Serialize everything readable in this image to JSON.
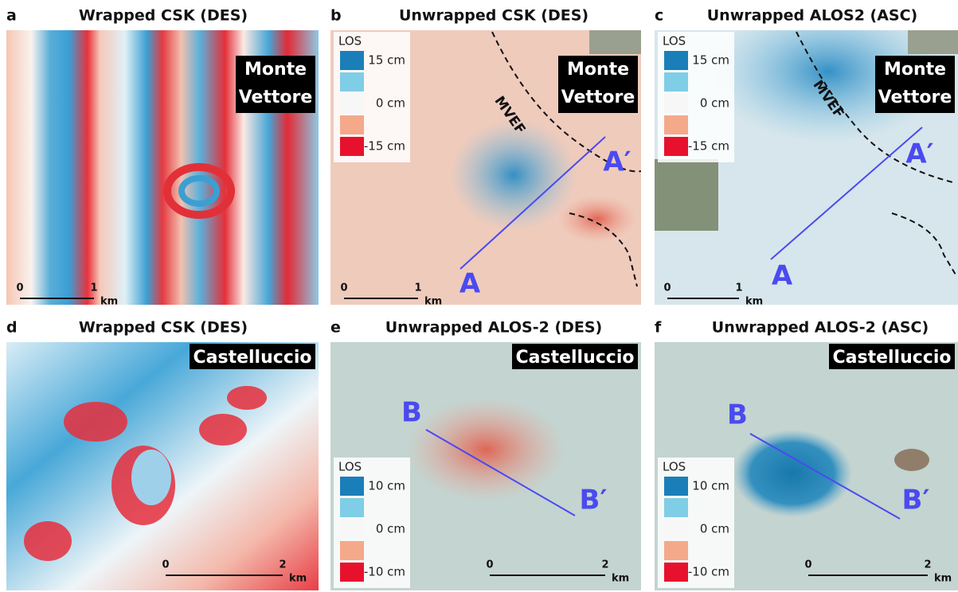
{
  "panels": [
    {
      "letter": "a",
      "title": "Wrapped CSK (DES)",
      "place": [
        "Monte",
        "Vettore"
      ],
      "scale": [
        "0",
        "1",
        "km"
      ]
    },
    {
      "letter": "b",
      "title": "Unwrapped CSK (DES)",
      "place": [
        "Monte",
        "Vettore"
      ],
      "legend": {
        "title": "LOS",
        "high": "15 cm",
        "zero": "0 cm",
        "low": "-15 cm"
      },
      "fault": "MVEF",
      "profile": [
        "A",
        "A′"
      ],
      "scale": [
        "0",
        "1",
        "km"
      ]
    },
    {
      "letter": "c",
      "title": "Unwrapped ALOS2 (ASC)",
      "place": [
        "Monte",
        "Vettore"
      ],
      "legend": {
        "title": "LOS",
        "high": "15 cm",
        "zero": "0 cm",
        "low": "-15 cm"
      },
      "fault": "MVEF",
      "profile": [
        "A",
        "A′"
      ],
      "scale": [
        "0",
        "1",
        "km"
      ]
    },
    {
      "letter": "d",
      "title": "Wrapped CSK (DES)",
      "place": [
        "Castelluccio"
      ],
      "scale": [
        "0",
        "2",
        "km"
      ]
    },
    {
      "letter": "e",
      "title": "Unwrapped ALOS-2 (DES)",
      "place": [
        "Castelluccio"
      ],
      "legend": {
        "title": "LOS",
        "high": "10 cm",
        "zero": "0 cm",
        "low": "-10 cm"
      },
      "profile": [
        "B",
        "B′"
      ],
      "scale": [
        "0",
        "2",
        "km"
      ]
    },
    {
      "letter": "f",
      "title": "Unwrapped ALOS-2 (ASC)",
      "place": [
        "Castelluccio"
      ],
      "legend": {
        "title": "LOS",
        "high": "10 cm",
        "zero": "0 cm",
        "low": "-10 cm"
      },
      "profile": [
        "B",
        "B′"
      ],
      "scale": [
        "0",
        "2",
        "km"
      ]
    }
  ]
}
